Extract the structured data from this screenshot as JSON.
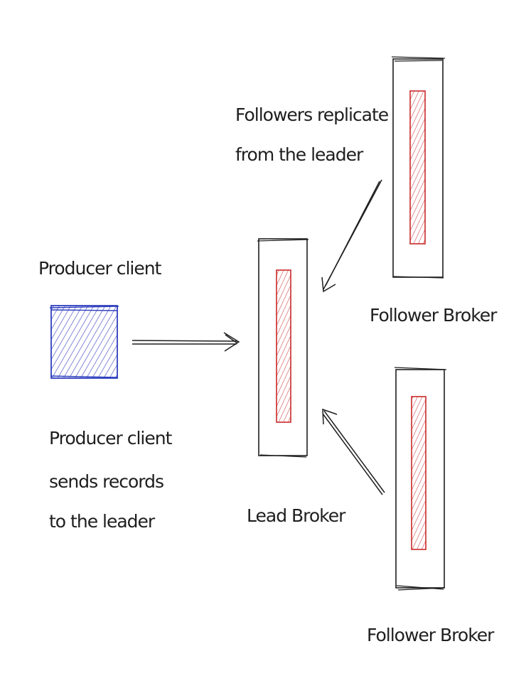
{
  "labels": {
    "producer_client": "Producer client",
    "producer_sends": [
      "Producer client",
      "sends records",
      "to the leader"
    ],
    "followers_replicate": [
      "Followers replicate",
      "from the leader"
    ],
    "lead_broker": "Lead Broker",
    "follower_broker_top": "Follower Broker",
    "follower_broker_bottom": "Follower Broker"
  },
  "colors": {
    "stroke": "#1e1e1e",
    "producer": "#2f3fbf",
    "log": "#c92a2a",
    "background": "#ffffff"
  }
}
